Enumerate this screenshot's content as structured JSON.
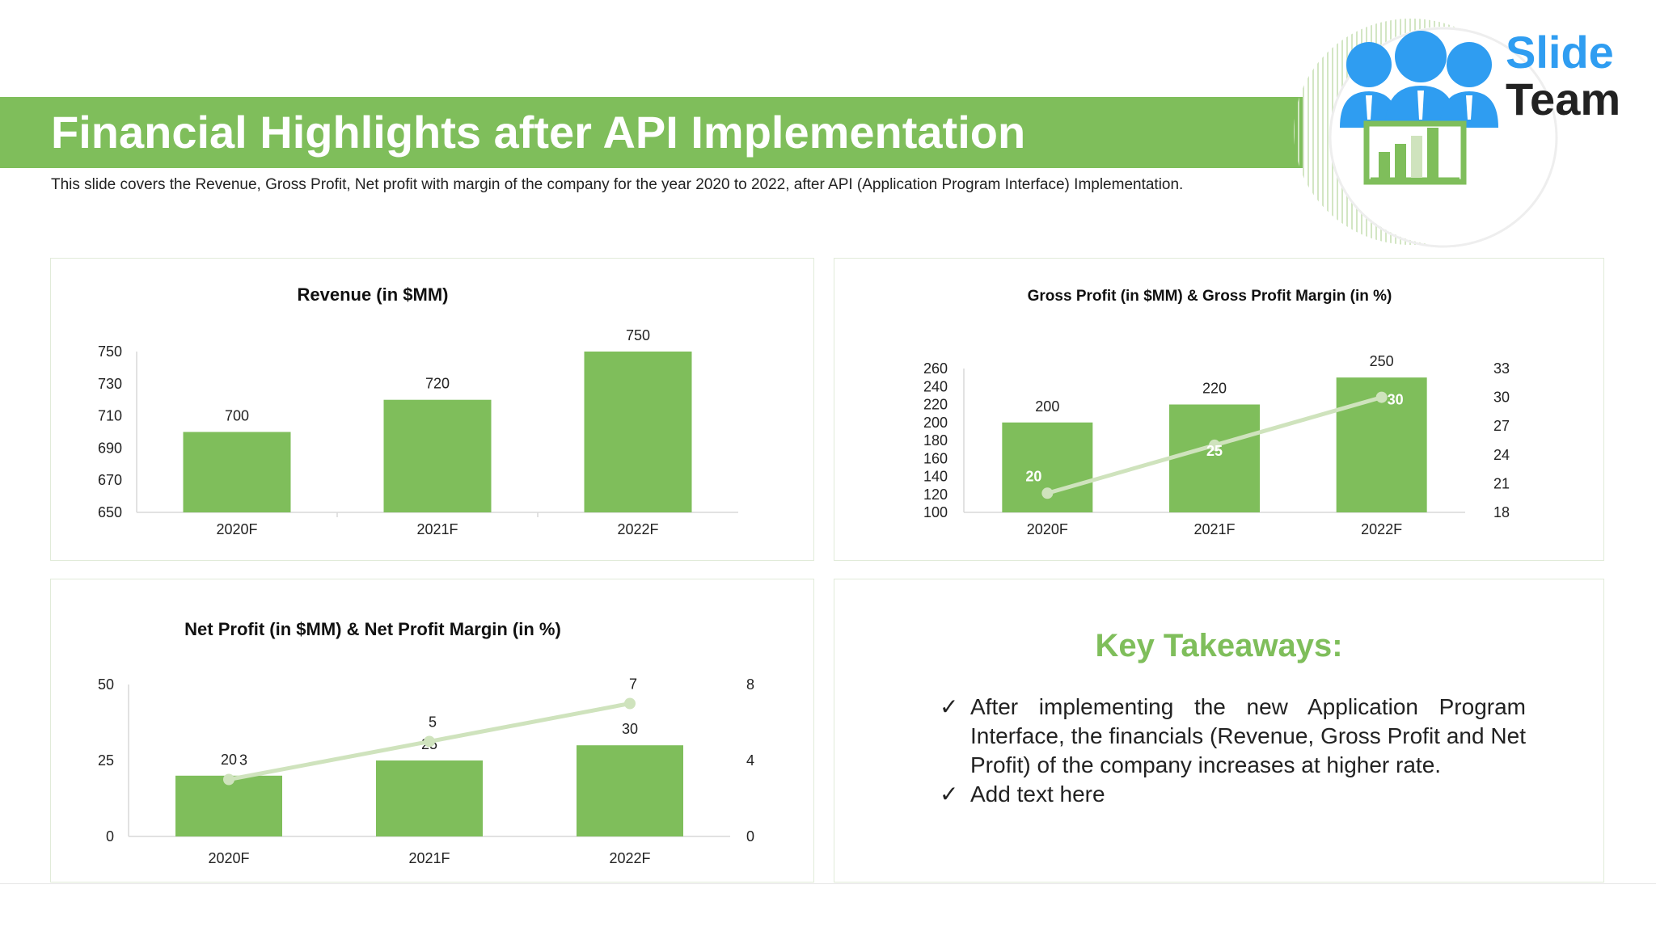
{
  "page": {
    "title": "Financial Highlights after API Implementation",
    "subtitle": "This slide covers the Revenue, Gross Profit, Net profit with margin of the company for the year 2020 to 2022, after API (Application Program Interface) Implementation."
  },
  "logo": {
    "line1": "Slide",
    "line2": "Team",
    "icon": "team-chart-logo"
  },
  "colors": {
    "accent": "#7fbe5b",
    "bar": "#7fbe5b",
    "line": "#cfe3bd",
    "logo_blue": "#2f9df1"
  },
  "chart_data": [
    {
      "type": "bar",
      "title": "Revenue (in $MM)",
      "categories": [
        "2020F",
        "2021F",
        "2022F"
      ],
      "values": [
        700,
        720,
        750
      ],
      "ylim": [
        650,
        750
      ],
      "yticks": [
        650,
        670,
        690,
        710,
        730,
        750
      ],
      "grid": false
    },
    {
      "type": "bar",
      "title": "Gross Profit (in $MM) & Gross Profit Margin (in %)",
      "categories": [
        "2020F",
        "2021F",
        "2022F"
      ],
      "series": [
        {
          "values": [
            200,
            220,
            250
          ],
          "axis": "left"
        },
        {
          "values": [
            20,
            25,
            30
          ],
          "axis": "right",
          "type": "line"
        }
      ],
      "ylim": [
        100,
        260
      ],
      "yticks": [
        100,
        120,
        140,
        160,
        180,
        200,
        220,
        240,
        260
      ],
      "y2lim": [
        18,
        33
      ],
      "y2ticks": [
        18,
        21,
        24,
        27,
        30,
        33
      ],
      "grid": false
    },
    {
      "type": "bar",
      "title": "Net Profit (in $MM) & Net Profit Margin (in %)",
      "categories": [
        "2020F",
        "2021F",
        "2022F"
      ],
      "series": [
        {
          "values": [
            20,
            25,
            30
          ],
          "axis": "left"
        },
        {
          "values": [
            3,
            5,
            7
          ],
          "axis": "right",
          "type": "line"
        }
      ],
      "ylim": [
        0,
        50
      ],
      "yticks": [
        0,
        25,
        50
      ],
      "y2lim": [
        0,
        8
      ],
      "y2ticks": [
        0,
        4,
        8
      ],
      "grid": false
    }
  ],
  "takeaways": {
    "title": "Key Takeaways:",
    "items": [
      "After implementing the new Application Program Interface, the financials (Revenue, Gross Profit and Net Profit) of the company increases at higher rate.",
      "Add text here"
    ]
  }
}
